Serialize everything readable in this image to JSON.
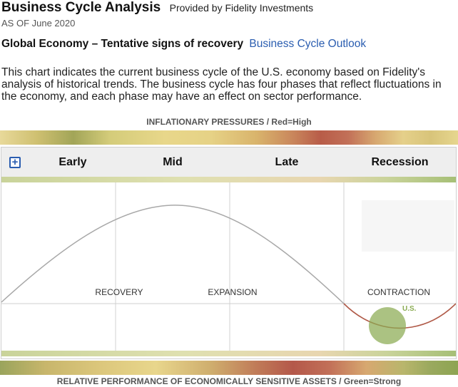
{
  "header": {
    "title": "Business Cycle Analysis",
    "provided_by": "Provided by Fidelity Investments",
    "as_of": "AS OF June 2020"
  },
  "headline": {
    "text": "Global Economy – Tentative signs of recovery",
    "link": "Business Cycle Outlook"
  },
  "description": "This chart indicates the current business cycle of the U.S. economy based on Fidelity's analysis of historical trends. The business cycle has four phases that reflect fluctuations in the economy, and each phase may have an effect on sector performance.",
  "inflation_caption": "INFLATIONARY PRESSURES / Red=High",
  "relative_caption": "RELATIVE PERFORMANCE OF ECONOMICALLY SENSITIVE ASSETS / Green=Strong",
  "phases": [
    "Early",
    "Mid",
    "Late",
    "Recession"
  ],
  "expand_icon": "+",
  "regions": {
    "recovery": "RECOVERY",
    "expansion": "EXPANSION",
    "contraction": "CONTRACTION"
  },
  "marker_label": "U.S.",
  "colors": {
    "link": "#2a5db0",
    "curve": "#a8a8a8",
    "contraction_curve": "#b05a48",
    "marker": "#8aab52"
  }
}
